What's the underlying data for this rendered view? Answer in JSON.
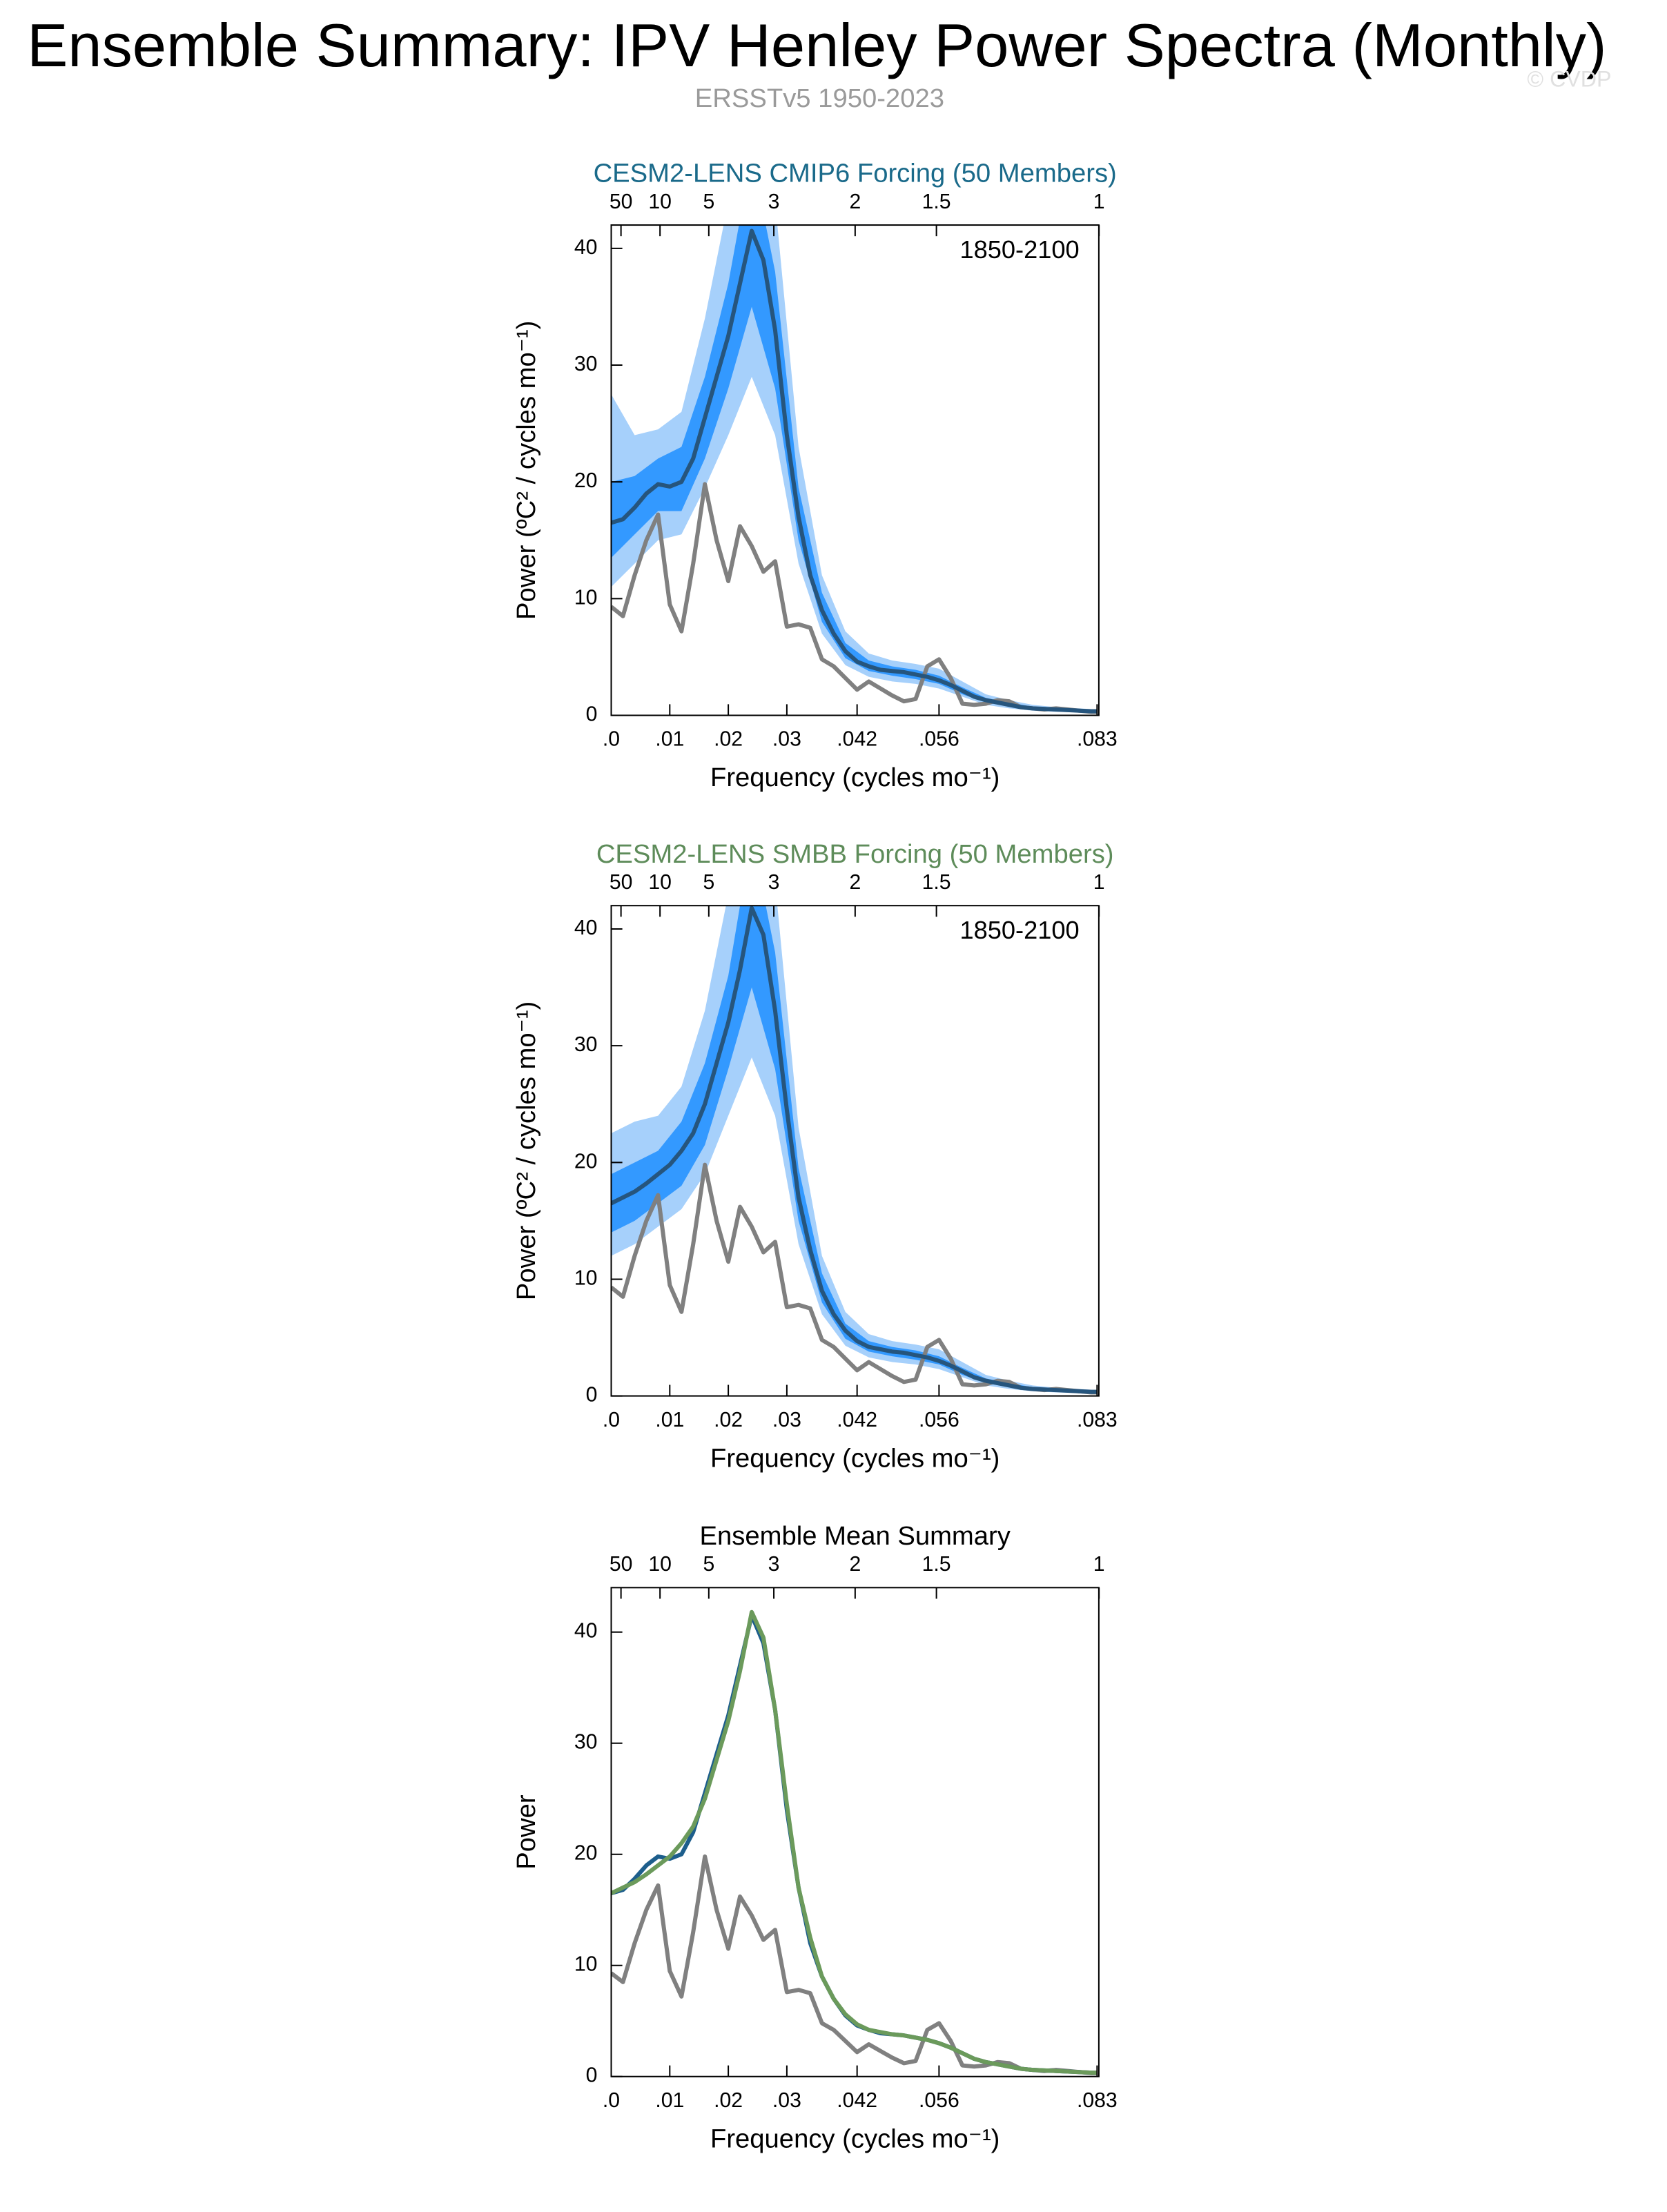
{
  "title": "Ensemble Summary: IPV Henley Power Spectra (Monthly)",
  "subtitle": "ERSSTv5 1950-2023",
  "copyright": "© CVDP",
  "chart_data": [
    {
      "type": "line",
      "title": "CESM2-LENS CMIP6 Forcing (50 Members)",
      "title_color": "#1a6a8a",
      "annotation": "1850-2100",
      "xlabel": "Frequency (cycles mo⁻¹)",
      "ylabel": "Power (ºC² / cycles mo⁻¹)",
      "xlim": [
        0,
        0.0833
      ],
      "ylim": [
        0,
        42
      ],
      "xticks": [
        {
          "value": 0,
          "label": ".0"
        },
        {
          "value": 0.01,
          "label": ".01"
        },
        {
          "value": 0.02,
          "label": ".02"
        },
        {
          "value": 0.03,
          "label": ".03"
        },
        {
          "value": 0.042,
          "label": ".042"
        },
        {
          "value": 0.056,
          "label": ".056"
        },
        {
          "value": 0.083,
          "label": ".083"
        }
      ],
      "x2ticks": [
        50,
        10,
        5,
        3,
        2,
        1.5,
        1
      ],
      "yticks": [
        0,
        10,
        20,
        30,
        40
      ],
      "x": [
        0,
        0.002,
        0.004,
        0.006,
        0.008,
        0.01,
        0.012,
        0.014,
        0.016,
        0.018,
        0.02,
        0.022,
        0.024,
        0.026,
        0.028,
        0.03,
        0.032,
        0.034,
        0.036,
        0.038,
        0.04,
        0.042,
        0.044,
        0.046,
        0.048,
        0.05,
        0.052,
        0.054,
        0.056,
        0.058,
        0.06,
        0.062,
        0.064,
        0.066,
        0.068,
        0.07,
        0.072,
        0.074,
        0.076,
        0.078,
        0.08,
        0.082,
        0.083
      ],
      "bands": [
        {
          "color": "#a6d0fb",
          "x": [
            0,
            0.004,
            0.008,
            0.012,
            0.016,
            0.02,
            0.024,
            0.028,
            0.032,
            0.036,
            0.04,
            0.044,
            0.048,
            0.052,
            0.056,
            0.06,
            0.064,
            0.068,
            0.072,
            0.076,
            0.08,
            0.083
          ],
          "lower": [
            11,
            13,
            15,
            15.5,
            19.5,
            24,
            29,
            24,
            13,
            7,
            4.3,
            3.3,
            2.9,
            2.7,
            2.3,
            1.6,
            0.9,
            0.6,
            0.4,
            0.3,
            0.25,
            0.2
          ],
          "upper": [
            27.5,
            24,
            24.5,
            26,
            34,
            44,
            46,
            44,
            23,
            12,
            7.2,
            5.3,
            4.7,
            4.4,
            4,
            2.9,
            1.8,
            1.3,
            0.9,
            0.7,
            0.6,
            0.5
          ]
        },
        {
          "color": "#3399ff",
          "x": [
            0,
            0.004,
            0.008,
            0.012,
            0.016,
            0.02,
            0.024,
            0.028,
            0.032,
            0.036,
            0.04,
            0.044,
            0.048,
            0.052,
            0.056,
            0.06,
            0.064,
            0.068,
            0.072,
            0.076,
            0.08,
            0.083
          ],
          "lower": [
            13.5,
            15.5,
            17.5,
            17.5,
            22,
            28,
            35,
            28,
            15,
            8,
            4.9,
            3.8,
            3.4,
            3.1,
            2.7,
            1.8,
            1.1,
            0.75,
            0.5,
            0.4,
            0.32,
            0.28
          ],
          "upper": [
            20,
            20.5,
            22,
            23,
            29,
            37,
            48,
            38,
            19.5,
            10.5,
            6.2,
            4.7,
            4.2,
            3.9,
            3.4,
            2.4,
            1.5,
            1.1,
            0.75,
            0.6,
            0.5,
            0.42
          ]
        }
      ],
      "series": [
        {
          "color": "#808080",
          "values": [
            9.3,
            8.5,
            12,
            15,
            17.2,
            9.5,
            7.2,
            13,
            19.8,
            15,
            11.5,
            16.2,
            14.5,
            12.3,
            13.2,
            7.6,
            7.8,
            7.5,
            4.8,
            4.2,
            3.2,
            2.2,
            2.9,
            2.3,
            1.7,
            1.2,
            1.4,
            4.2,
            4.8,
            3.2,
            1.0,
            0.9,
            1.0,
            1.3,
            1.2,
            0.7,
            0.6,
            0.5,
            0.6,
            0.5,
            0.4,
            0.3,
            0.3
          ]
        },
        {
          "color": "#26557d",
          "values": [
            16.5,
            16.8,
            17.8,
            19,
            19.8,
            19.6,
            20,
            22,
            25.5,
            29,
            32.5,
            37,
            41.5,
            39,
            33,
            24,
            17,
            12,
            9,
            7,
            5.5,
            4.6,
            4.2,
            3.9,
            3.8,
            3.7,
            3.5,
            3.3,
            3.0,
            2.6,
            2.1,
            1.6,
            1.3,
            1.1,
            0.9,
            0.7,
            0.6,
            0.55,
            0.5,
            0.45,
            0.4,
            0.35,
            0.35
          ]
        }
      ]
    },
    {
      "type": "line",
      "title": "CESM2-LENS SMBB Forcing (50 Members)",
      "title_color": "#5e8c5a",
      "annotation": "1850-2100",
      "xlabel": "Frequency (cycles mo⁻¹)",
      "ylabel": "Power (ºC² / cycles mo⁻¹)",
      "xlim": [
        0,
        0.0833
      ],
      "ylim": [
        0,
        42
      ],
      "xticks": [
        {
          "value": 0,
          "label": ".0"
        },
        {
          "value": 0.01,
          "label": ".01"
        },
        {
          "value": 0.02,
          "label": ".02"
        },
        {
          "value": 0.03,
          "label": ".03"
        },
        {
          "value": 0.042,
          "label": ".042"
        },
        {
          "value": 0.056,
          "label": ".056"
        },
        {
          "value": 0.083,
          "label": ".083"
        }
      ],
      "x2ticks": [
        50,
        10,
        5,
        3,
        2,
        1.5,
        1
      ],
      "yticks": [
        0,
        10,
        20,
        30,
        40
      ],
      "x": [
        0,
        0.002,
        0.004,
        0.006,
        0.008,
        0.01,
        0.012,
        0.014,
        0.016,
        0.018,
        0.02,
        0.022,
        0.024,
        0.026,
        0.028,
        0.03,
        0.032,
        0.034,
        0.036,
        0.038,
        0.04,
        0.042,
        0.044,
        0.046,
        0.048,
        0.05,
        0.052,
        0.054,
        0.056,
        0.058,
        0.06,
        0.062,
        0.064,
        0.066,
        0.068,
        0.07,
        0.072,
        0.074,
        0.076,
        0.078,
        0.08,
        0.082,
        0.083
      ],
      "bands": [
        {
          "color": "#a6d0fb",
          "x": [
            0,
            0.004,
            0.008,
            0.012,
            0.016,
            0.02,
            0.024,
            0.028,
            0.032,
            0.036,
            0.04,
            0.044,
            0.048,
            0.052,
            0.056,
            0.06,
            0.064,
            0.068,
            0.072,
            0.076,
            0.08,
            0.083
          ],
          "lower": [
            12,
            13,
            14.5,
            16,
            19,
            24,
            29,
            24,
            13,
            7,
            4.3,
            3.3,
            2.9,
            2.7,
            2.3,
            1.6,
            0.9,
            0.6,
            0.4,
            0.3,
            0.25,
            0.2
          ],
          "upper": [
            22.5,
            23.5,
            24,
            26.5,
            33,
            43,
            47,
            44,
            23,
            12,
            7.2,
            5.3,
            4.7,
            4.4,
            4,
            2.9,
            1.8,
            1.3,
            0.9,
            0.7,
            0.6,
            0.5
          ]
        },
        {
          "color": "#3399ff",
          "x": [
            0,
            0.004,
            0.008,
            0.012,
            0.016,
            0.02,
            0.024,
            0.028,
            0.032,
            0.036,
            0.04,
            0.044,
            0.048,
            0.052,
            0.056,
            0.06,
            0.064,
            0.068,
            0.072,
            0.076,
            0.08,
            0.083
          ],
          "lower": [
            14,
            15,
            16.5,
            18,
            21.5,
            28,
            35,
            28,
            15,
            8,
            4.9,
            3.8,
            3.4,
            3.1,
            2.7,
            1.8,
            1.1,
            0.75,
            0.5,
            0.4,
            0.32,
            0.28
          ],
          "upper": [
            19,
            20,
            21,
            23.5,
            28.5,
            36,
            48,
            38,
            19.5,
            10.5,
            6.2,
            4.7,
            4.2,
            3.9,
            3.4,
            2.4,
            1.5,
            1.1,
            0.75,
            0.6,
            0.5,
            0.42
          ]
        }
      ],
      "series": [
        {
          "color": "#808080",
          "values": [
            9.3,
            8.5,
            12,
            15,
            17.2,
            9.5,
            7.2,
            13,
            19.8,
            15,
            11.5,
            16.2,
            14.5,
            12.3,
            13.2,
            7.6,
            7.8,
            7.5,
            4.8,
            4.2,
            3.2,
            2.2,
            2.9,
            2.3,
            1.7,
            1.2,
            1.4,
            4.2,
            4.8,
            3.2,
            1.0,
            0.9,
            1.0,
            1.3,
            1.2,
            0.7,
            0.6,
            0.5,
            0.6,
            0.5,
            0.4,
            0.3,
            0.3
          ]
        },
        {
          "color": "#26557d",
          "values": [
            16.5,
            17,
            17.5,
            18.2,
            19,
            19.8,
            21,
            22.5,
            25,
            28.5,
            32,
            36.5,
            41.8,
            39.5,
            33,
            24.5,
            17,
            12.5,
            9,
            7,
            5.6,
            4.7,
            4.2,
            4,
            3.8,
            3.7,
            3.5,
            3.3,
            3.0,
            2.6,
            2.1,
            1.6,
            1.3,
            1.1,
            0.9,
            0.7,
            0.6,
            0.55,
            0.5,
            0.45,
            0.4,
            0.35,
            0.35
          ]
        }
      ]
    },
    {
      "type": "line",
      "title": "Ensemble Mean Summary",
      "title_color": "#000000",
      "xlabel": "Frequency (cycles mo⁻¹)",
      "ylabel": "Power",
      "xlim": [
        0,
        0.0833
      ],
      "ylim": [
        0,
        44
      ],
      "xticks": [
        {
          "value": 0,
          "label": ".0"
        },
        {
          "value": 0.01,
          "label": ".01"
        },
        {
          "value": 0.02,
          "label": ".02"
        },
        {
          "value": 0.03,
          "label": ".03"
        },
        {
          "value": 0.042,
          "label": ".042"
        },
        {
          "value": 0.056,
          "label": ".056"
        },
        {
          "value": 0.083,
          "label": ".083"
        }
      ],
      "x2ticks": [
        50,
        10,
        5,
        3,
        2,
        1.5,
        1
      ],
      "yticks": [
        0,
        10,
        20,
        30,
        40
      ],
      "x": [
        0,
        0.002,
        0.004,
        0.006,
        0.008,
        0.01,
        0.012,
        0.014,
        0.016,
        0.018,
        0.02,
        0.022,
        0.024,
        0.026,
        0.028,
        0.03,
        0.032,
        0.034,
        0.036,
        0.038,
        0.04,
        0.042,
        0.044,
        0.046,
        0.048,
        0.05,
        0.052,
        0.054,
        0.056,
        0.058,
        0.06,
        0.062,
        0.064,
        0.066,
        0.068,
        0.07,
        0.072,
        0.074,
        0.076,
        0.078,
        0.08,
        0.082,
        0.083
      ],
      "series": [
        {
          "color": "#808080",
          "values": [
            9.3,
            8.5,
            12,
            15,
            17.2,
            9.5,
            7.2,
            13,
            19.8,
            15,
            11.5,
            16.2,
            14.5,
            12.3,
            13.2,
            7.6,
            7.8,
            7.5,
            4.8,
            4.2,
            3.2,
            2.2,
            2.9,
            2.3,
            1.7,
            1.2,
            1.4,
            4.2,
            4.8,
            3.2,
            1.0,
            0.9,
            1.0,
            1.3,
            1.2,
            0.7,
            0.6,
            0.5,
            0.6,
            0.5,
            0.4,
            0.3,
            0.3
          ]
        },
        {
          "color": "#1d5e8c",
          "values": [
            16.5,
            16.8,
            17.8,
            19,
            19.8,
            19.6,
            20,
            22,
            25.5,
            29,
            32.5,
            37,
            41.5,
            39,
            33,
            24,
            17,
            12,
            9,
            7,
            5.5,
            4.6,
            4.2,
            3.9,
            3.8,
            3.7,
            3.5,
            3.3,
            3.0,
            2.6,
            2.1,
            1.6,
            1.3,
            1.1,
            0.9,
            0.7,
            0.6,
            0.55,
            0.5,
            0.45,
            0.4,
            0.35,
            0.35
          ]
        },
        {
          "color": "#6b9a5b",
          "values": [
            16.5,
            17,
            17.5,
            18.2,
            19,
            19.8,
            21,
            22.5,
            25,
            28.5,
            32,
            36.5,
            41.8,
            39.5,
            33,
            24.5,
            17,
            12.5,
            9,
            7,
            5.6,
            4.7,
            4.2,
            4,
            3.8,
            3.7,
            3.5,
            3.3,
            3.0,
            2.6,
            2.1,
            1.6,
            1.3,
            1.1,
            0.9,
            0.7,
            0.6,
            0.55,
            0.5,
            0.45,
            0.4,
            0.35,
            0.35
          ]
        }
      ]
    }
  ]
}
